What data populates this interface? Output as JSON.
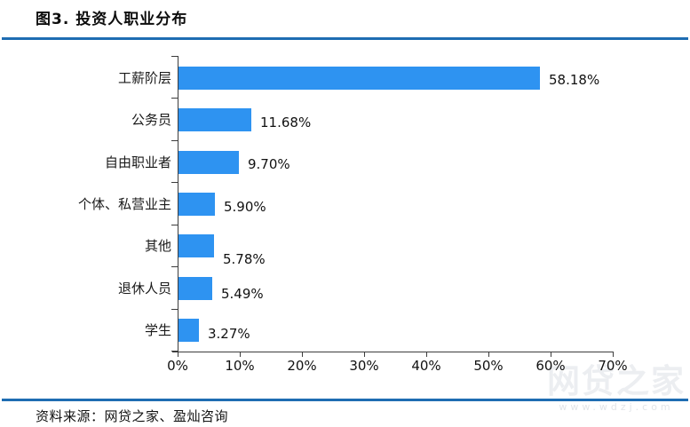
{
  "title": "图3. 投资人职业分布",
  "source": "资料来源：网贷之家、盈灿咨询",
  "watermark": {
    "logo": "网贷之家",
    "url": "www.wdzj.com"
  },
  "colors": {
    "bar": "#2E93F1",
    "rule": "#1F6DB2"
  },
  "chart_data": {
    "type": "bar",
    "orientation": "horizontal",
    "title": "图3. 投资人职业分布",
    "categories": [
      "工薪阶层",
      "公务员",
      "自由职业者",
      "个体、私营业主",
      "其他",
      "退休人员",
      "学生"
    ],
    "values": [
      58.18,
      11.68,
      9.7,
      5.9,
      5.78,
      5.49,
      3.27
    ],
    "value_labels": [
      "58.18%",
      "11.68%",
      "9.70%",
      "5.90%",
      "5.78%",
      "5.49%",
      "3.27%"
    ],
    "x_ticks": [
      "0%",
      "10%",
      "20%",
      "30%",
      "40%",
      "50%",
      "60%",
      "70%"
    ],
    "xlim": [
      0,
      70
    ],
    "grid": false,
    "legend": false,
    "bar_color": "#2E93F1"
  }
}
